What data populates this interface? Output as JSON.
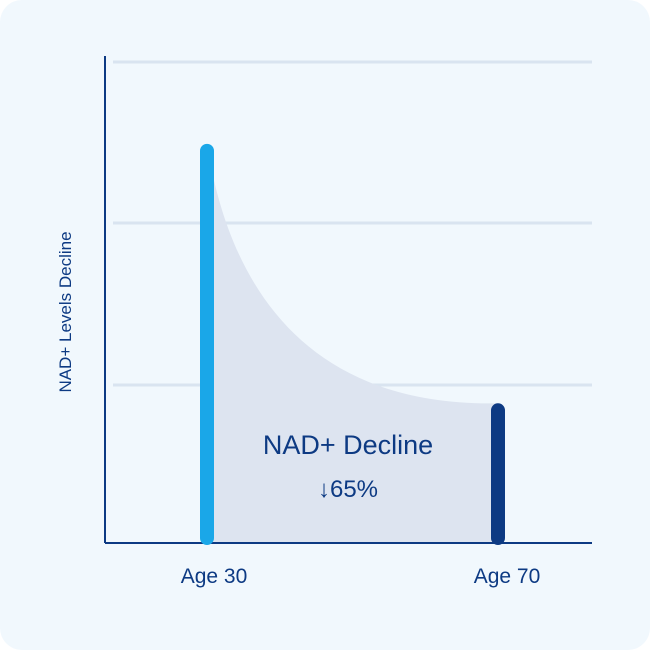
{
  "chart_data": {
    "type": "area",
    "title": "",
    "xlabel": "",
    "ylabel": "NAD+ Levels Decline",
    "categories": [
      "Age 30",
      "Age 70"
    ],
    "x": [
      30,
      70
    ],
    "values": [
      100,
      35
    ],
    "ylim": [
      0,
      122
    ],
    "grid": true,
    "colors": {
      "start_bar": "#1aa7e8",
      "end_bar": "#0d3a83",
      "area_fill": "#dde4f0",
      "gridline": "#d9e4f0",
      "axis": "#0d3a83",
      "text": "#0d3a83"
    },
    "annotation": {
      "title": "NAD+ Decline",
      "value": "↓65%"
    }
  }
}
